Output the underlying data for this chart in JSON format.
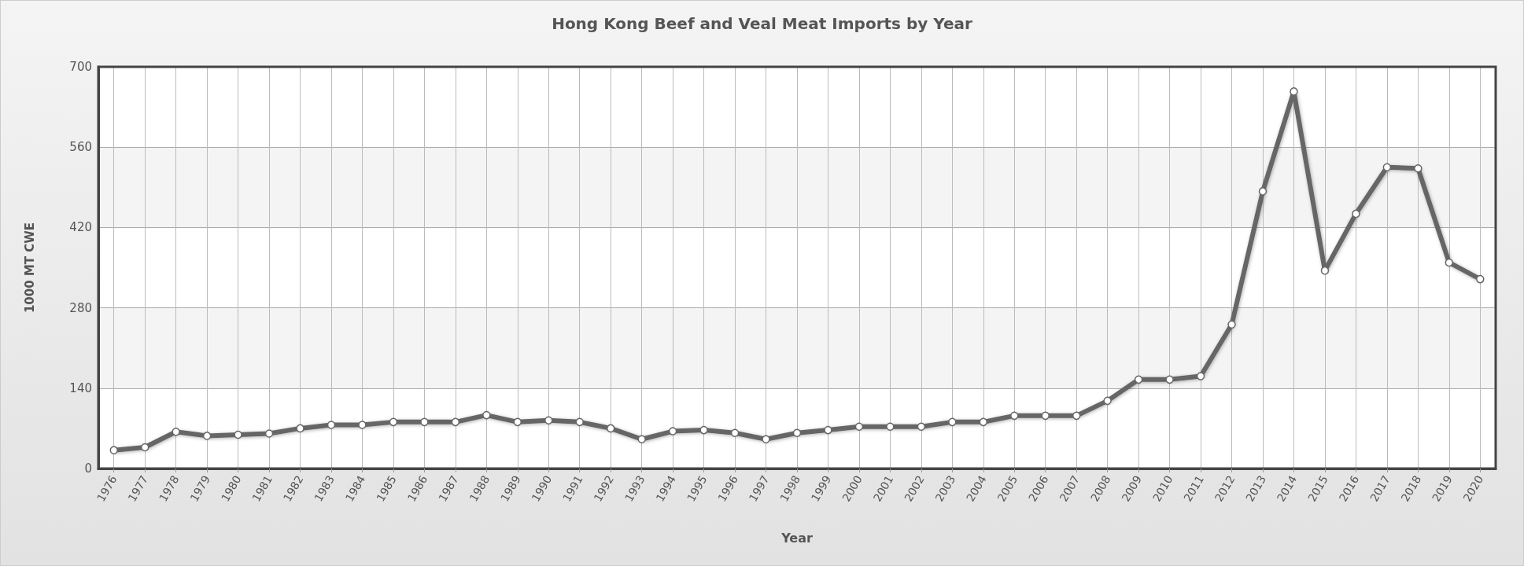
{
  "chart_data": {
    "type": "line",
    "title": "Hong Kong Beef and Veal Meat Imports by Year",
    "xlabel": "Year",
    "ylabel": "1000 MT CWE",
    "x": [
      1976,
      1977,
      1978,
      1979,
      1980,
      1981,
      1982,
      1983,
      1984,
      1985,
      1986,
      1987,
      1988,
      1989,
      1990,
      1991,
      1992,
      1993,
      1994,
      1995,
      1996,
      1997,
      1998,
      1999,
      2000,
      2001,
      2002,
      2003,
      2004,
      2005,
      2006,
      2007,
      2008,
      2009,
      2010,
      2011,
      2012,
      2013,
      2014,
      2015,
      2016,
      2017,
      2018,
      2019,
      2020
    ],
    "series": [
      {
        "color": "#666666",
        "values": [
          32,
          37,
          64,
          57,
          59,
          61,
          70,
          76,
          76,
          81,
          81,
          81,
          93,
          81,
          84,
          81,
          70,
          51,
          65,
          67,
          62,
          51,
          62,
          67,
          73,
          73,
          73,
          81,
          81,
          92,
          92,
          92,
          118,
          155,
          155,
          161,
          251,
          483,
          657,
          345,
          444,
          525,
          523,
          359,
          330
        ]
      }
    ],
    "xlim": [
      1975.5,
      2020.5
    ],
    "xticks": [
      1976,
      1977,
      1978,
      1979,
      1980,
      1981,
      1982,
      1983,
      1984,
      1985,
      1986,
      1987,
      1988,
      1989,
      1990,
      1991,
      1992,
      1993,
      1994,
      1995,
      1996,
      1997,
      1998,
      1999,
      2000,
      2001,
      2002,
      2003,
      2004,
      2005,
      2006,
      2007,
      2008,
      2009,
      2010,
      2011,
      2012,
      2013,
      2014,
      2015,
      2016,
      2017,
      2018,
      2019,
      2020
    ],
    "ylim": [
      0,
      700
    ],
    "yticks": [
      0,
      140,
      280,
      420,
      560,
      700
    ],
    "grid": true,
    "marker": "circle",
    "line_style": "solid"
  }
}
